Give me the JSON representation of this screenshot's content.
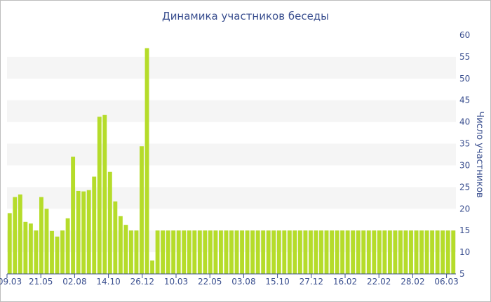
{
  "chart_data": {
    "type": "bar",
    "title": "Динамика участников беседы",
    "xlabel": "",
    "ylabel": "Число участников",
    "ylim": [
      5,
      60
    ],
    "yticks": [
      5,
      10,
      15,
      20,
      25,
      30,
      35,
      40,
      45,
      50,
      55,
      60
    ],
    "y_axis_position": "right",
    "grid": "alternating horizontal bands",
    "x_tick_labels": [
      "09.03",
      "21.05",
      "02.08",
      "14.10",
      "26.12",
      "10.03",
      "22.05",
      "03.08",
      "15.10",
      "27.12",
      "16.02",
      "22.02",
      "28.02",
      "06.03"
    ],
    "series": [
      {
        "color": "#b5dc2a",
        "values": [
          19,
          22.7,
          23.3,
          17,
          16.6,
          15,
          22.7,
          20,
          14.9,
          13.6,
          15,
          17.8,
          32,
          24.1,
          24,
          24.3,
          27.4,
          41.2,
          41.6,
          28.5,
          21.7,
          18.3,
          16.3,
          15,
          15,
          34.4,
          57,
          8.1,
          15,
          15,
          15,
          15,
          15,
          15,
          15,
          15,
          15,
          15,
          15,
          15,
          15,
          15,
          15,
          15,
          15,
          15,
          15,
          15,
          15,
          15,
          15,
          15,
          15,
          15,
          15,
          15,
          15,
          15,
          15,
          15,
          15,
          15,
          15,
          15,
          15,
          15,
          15,
          15,
          15,
          15,
          15,
          15,
          15,
          15,
          15,
          15,
          15,
          15,
          15,
          15,
          15,
          15,
          15,
          15,
          15
        ]
      }
    ]
  }
}
